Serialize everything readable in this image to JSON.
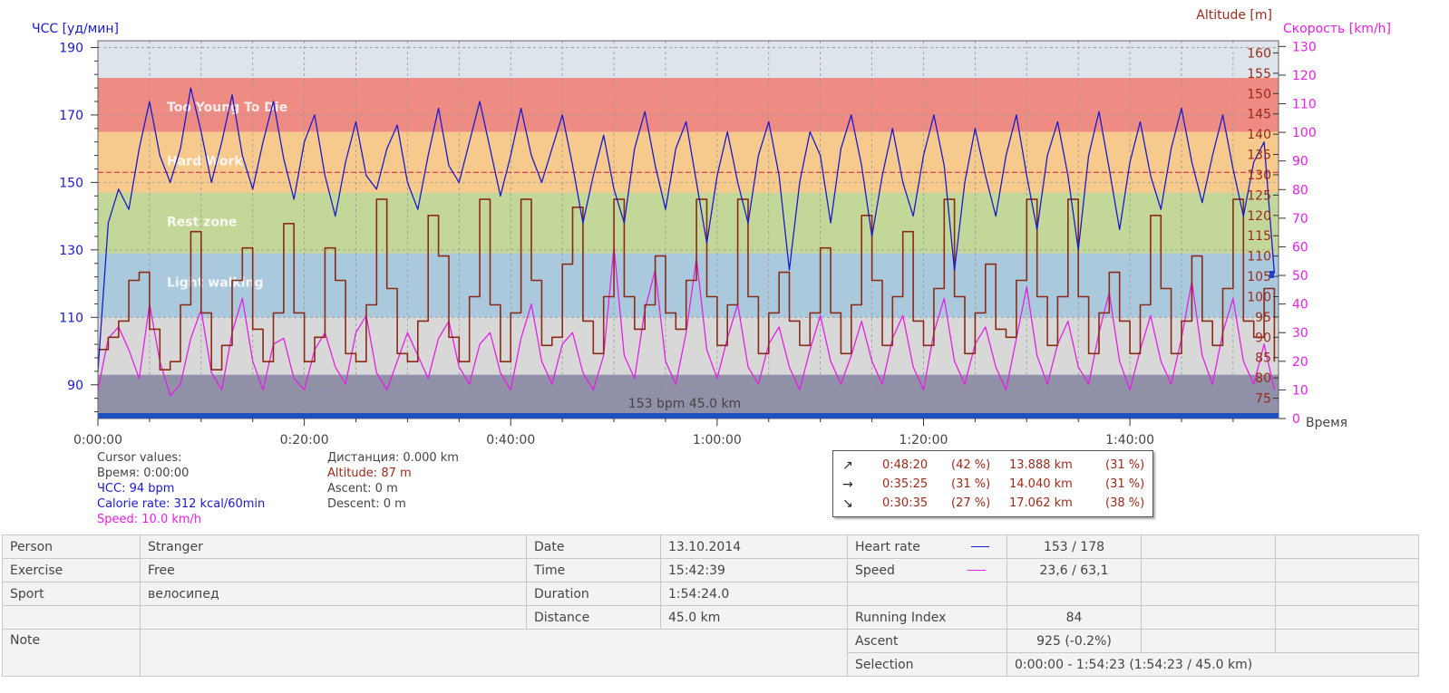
{
  "chart_data": {
    "type": "line",
    "axes": {
      "left": {
        "label": "ЧСС [уд/мин]",
        "ticks": [
          90,
          110,
          130,
          150,
          170,
          190
        ],
        "range": [
          80,
          192
        ]
      },
      "right_altitude": {
        "label": "Altitude [m]",
        "ticks": [
          75,
          80,
          85,
          90,
          95,
          100,
          105,
          110,
          115,
          120,
          125,
          130,
          135,
          140,
          145,
          150,
          155,
          160
        ],
        "range": [
          70,
          163
        ]
      },
      "right_speed": {
        "label": "Скорость [km/h]",
        "ticks": [
          0,
          10,
          20,
          30,
          40,
          50,
          60,
          70,
          80,
          90,
          100,
          110,
          120,
          130
        ],
        "range": [
          0,
          132
        ]
      },
      "x": {
        "label": "Время",
        "ticks": [
          "0:00:00",
          "0:20:00",
          "0:40:00",
          "1:00:00",
          "1:20:00",
          "1:40:00"
        ],
        "range_min": [
          0,
          114.4
        ]
      }
    },
    "zones": [
      {
        "name": "",
        "from": 80,
        "to": 93,
        "color": "#9090a8"
      },
      {
        "name": "",
        "from": 93,
        "to": 110,
        "color": "#d8d8d8"
      },
      {
        "name": "Light walking",
        "from": 110,
        "to": 129,
        "color": "#abc9dc"
      },
      {
        "name": "Rest zone",
        "from": 129,
        "to": 147,
        "color": "#c3d898"
      },
      {
        "name": "Hard Work",
        "from": 147,
        "to": 165,
        "color": "#f6c98d"
      },
      {
        "name": "Too Young To Die",
        "from": 165,
        "to": 181,
        "color": "#ee8c84"
      },
      {
        "name": "",
        "from": 181,
        "to": 192,
        "color": "#dde4ec"
      }
    ],
    "avg_hr_line": 153,
    "center_annotation": "153 bpm 45.0 km",
    "series": [
      {
        "name": "ЧСС",
        "color": "#1a1acc",
        "x": [
          0,
          1,
          2,
          3,
          4,
          5,
          6,
          7,
          8,
          9,
          10,
          11,
          12,
          13,
          14,
          15,
          16,
          17,
          18,
          19,
          20,
          21,
          22,
          23,
          24,
          25,
          26,
          27,
          28,
          29,
          30,
          31,
          32,
          33,
          34,
          35,
          36,
          37,
          38,
          39,
          40,
          41,
          42,
          43,
          44,
          45,
          46,
          47,
          48,
          49,
          50,
          51,
          52,
          53,
          54,
          55,
          56,
          57,
          58,
          59,
          60,
          61,
          62,
          63,
          64,
          65,
          66,
          67,
          68,
          69,
          70,
          71,
          72,
          73,
          74,
          75,
          76,
          77,
          78,
          79,
          80,
          81,
          82,
          83,
          84,
          85,
          86,
          87,
          88,
          89,
          90,
          91,
          92,
          93,
          94,
          95,
          96,
          97,
          98,
          99,
          100,
          101,
          102,
          103,
          104,
          105,
          106,
          107,
          108,
          109,
          110,
          111,
          112,
          113,
          114
        ],
        "values": [
          94,
          138,
          148,
          142,
          160,
          174,
          158,
          150,
          160,
          178,
          165,
          150,
          162,
          176,
          158,
          148,
          162,
          174,
          157,
          145,
          162,
          170,
          152,
          140,
          156,
          168,
          152,
          148,
          160,
          167,
          150,
          142,
          158,
          172,
          155,
          150,
          162,
          174,
          160,
          146,
          158,
          172,
          158,
          150,
          160,
          170,
          155,
          138,
          152,
          164,
          148,
          138,
          160,
          171,
          155,
          142,
          160,
          168,
          150,
          132,
          152,
          165,
          150,
          138,
          158,
          168,
          152,
          124,
          150,
          165,
          158,
          138,
          160,
          170,
          155,
          134,
          152,
          166,
          150,
          140,
          158,
          170,
          155,
          124,
          150,
          166,
          152,
          140,
          158,
          170,
          152,
          136,
          158,
          168,
          152,
          130,
          158,
          171,
          154,
          136,
          156,
          168,
          152,
          142,
          160,
          172,
          156,
          144,
          158,
          170,
          154,
          140,
          156,
          162,
          123
        ]
      },
      {
        "name": "Altitude",
        "color": "#8b2a16",
        "x": [
          0,
          1,
          2,
          3,
          4,
          5,
          6,
          7,
          8,
          9,
          10,
          11,
          12,
          13,
          14,
          15,
          16,
          17,
          18,
          19,
          20,
          21,
          22,
          23,
          24,
          25,
          26,
          27,
          28,
          29,
          30,
          31,
          32,
          33,
          34,
          35,
          36,
          37,
          38,
          39,
          40,
          41,
          42,
          43,
          44,
          45,
          46,
          47,
          48,
          49,
          50,
          51,
          52,
          53,
          54,
          55,
          56,
          57,
          58,
          59,
          60,
          61,
          62,
          63,
          64,
          65,
          66,
          67,
          68,
          69,
          70,
          71,
          72,
          73,
          74,
          75,
          76,
          77,
          78,
          79,
          80,
          81,
          82,
          83,
          84,
          85,
          86,
          87,
          88,
          89,
          90,
          91,
          92,
          93,
          94,
          95,
          96,
          97,
          98,
          99,
          100,
          101,
          102,
          103,
          104,
          105,
          106,
          107,
          108,
          109,
          110,
          111,
          112,
          113,
          114
        ],
        "values": [
          87,
          90,
          94,
          104,
          106,
          92,
          82,
          84,
          98,
          116,
          96,
          82,
          88,
          104,
          112,
          92,
          84,
          96,
          118,
          96,
          84,
          90,
          112,
          104,
          86,
          84,
          98,
          124,
          102,
          86,
          84,
          94,
          120,
          110,
          90,
          84,
          100,
          124,
          98,
          84,
          96,
          124,
          104,
          88,
          90,
          108,
          122,
          94,
          86,
          100,
          124,
          100,
          92,
          98,
          110,
          96,
          92,
          104,
          124,
          100,
          88,
          98,
          124,
          100,
          86,
          96,
          106,
          94,
          88,
          96,
          112,
          96,
          86,
          98,
          120,
          104,
          88,
          100,
          116,
          94,
          88,
          102,
          124,
          100,
          86,
          96,
          108,
          92,
          90,
          104,
          124,
          100,
          88,
          100,
          124,
          100,
          86,
          96,
          106,
          94,
          86,
          98,
          120,
          102,
          86,
          94,
          110,
          94,
          88,
          102,
          124,
          94,
          90,
          102,
          84
        ]
      },
      {
        "name": "Скорость",
        "color": "#e61ee6",
        "x": [
          0,
          1,
          2,
          3,
          4,
          5,
          6,
          7,
          8,
          9,
          10,
          11,
          12,
          13,
          14,
          15,
          16,
          17,
          18,
          19,
          20,
          21,
          22,
          23,
          24,
          25,
          26,
          27,
          28,
          29,
          30,
          31,
          32,
          33,
          34,
          35,
          36,
          37,
          38,
          39,
          40,
          41,
          42,
          43,
          44,
          45,
          46,
          47,
          48,
          49,
          50,
          51,
          52,
          53,
          54,
          55,
          56,
          57,
          58,
          59,
          60,
          61,
          62,
          63,
          64,
          65,
          66,
          67,
          68,
          69,
          70,
          71,
          72,
          73,
          74,
          75,
          76,
          77,
          78,
          79,
          80,
          81,
          82,
          83,
          84,
          85,
          86,
          87,
          88,
          89,
          90,
          91,
          92,
          93,
          94,
          95,
          96,
          97,
          98,
          99,
          100,
          101,
          102,
          103,
          104,
          105,
          106,
          107,
          108,
          109,
          110,
          111,
          112,
          113,
          114
        ],
        "values": [
          10,
          28,
          32,
          24,
          14,
          40,
          20,
          8,
          12,
          28,
          38,
          16,
          10,
          30,
          42,
          20,
          10,
          26,
          28,
          14,
          10,
          24,
          30,
          18,
          12,
          30,
          36,
          16,
          10,
          20,
          30,
          22,
          14,
          28,
          34,
          18,
          12,
          26,
          30,
          16,
          10,
          28,
          40,
          20,
          12,
          26,
          30,
          16,
          10,
          22,
          60,
          22,
          14,
          38,
          52,
          20,
          12,
          30,
          56,
          24,
          14,
          28,
          40,
          18,
          12,
          26,
          32,
          18,
          10,
          24,
          36,
          20,
          12,
          22,
          34,
          20,
          12,
          28,
          36,
          18,
          10,
          30,
          42,
          20,
          12,
          26,
          32,
          18,
          10,
          28,
          46,
          22,
          12,
          26,
          34,
          18,
          12,
          30,
          44,
          20,
          10,
          24,
          36,
          20,
          12,
          28,
          48,
          22,
          12,
          30,
          42,
          20,
          12,
          26,
          10
        ]
      }
    ]
  },
  "cursor": {
    "title": "Cursor values:",
    "time": "Время: 0:00:00",
    "hr": "ЧСС: 94 bpm",
    "calorie": "Calorie rate: 312 kcal/60min",
    "speed": "Speed: 10.0 km/h",
    "distance": "Дистанция: 0.000 km",
    "altitude": "Altitude: 87 m",
    "ascent": "Ascent: 0 m",
    "descent": "Descent: 0 m"
  },
  "laps": [
    {
      "icon": "↗",
      "time": "0:48:20",
      "pct1": "(42 %)",
      "dist": "13.888 km",
      "pct2": "(31 %)"
    },
    {
      "icon": "→",
      "time": "0:35:25",
      "pct1": "(31 %)",
      "dist": "14.040 km",
      "pct2": "(31 %)"
    },
    {
      "icon": "↘",
      "time": "0:30:35",
      "pct1": "(27 %)",
      "dist": "17.062 km",
      "pct2": "(38 %)"
    }
  ],
  "summary": {
    "person_label": "Person",
    "person": "Stranger",
    "exercise_label": "Exercise",
    "exercise": "Free",
    "sport_label": "Sport",
    "sport": "велосипед",
    "note_label": "Note",
    "date_label": "Date",
    "date": "13.10.2014",
    "time_label": "Time",
    "time": "15:42:39",
    "duration_label": "Duration",
    "duration": "1:54:24.0",
    "distance_label": "Distance",
    "distance": "45.0 km",
    "heart_rate_label": "Heart rate",
    "heart_rate": "153 / 178",
    "speed_label": "Speed",
    "speed": "23,6 / 63,1",
    "running_index_label": "Running Index",
    "running_index": "84",
    "ascent_label": "Ascent",
    "ascent": "925 (-0.2%)",
    "selection_label": "Selection",
    "selection": "0:00:00 - 1:54:23 (1:54:23 / 45.0 km)"
  }
}
